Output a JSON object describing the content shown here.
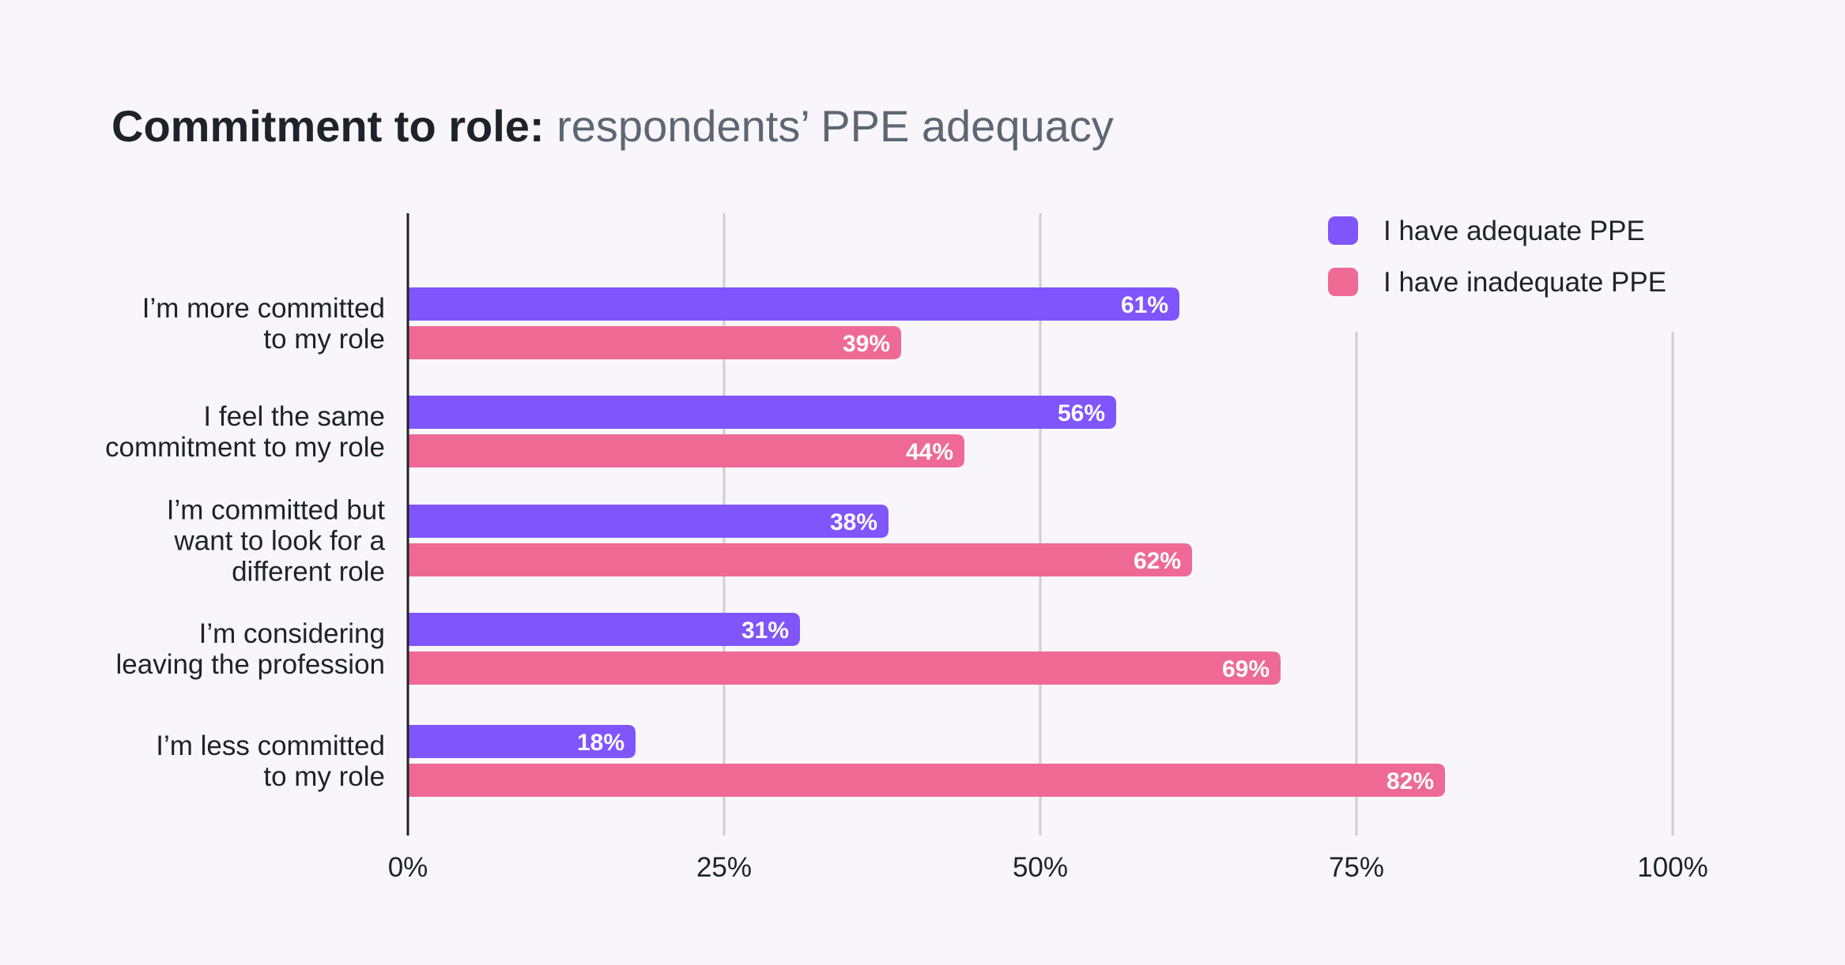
{
  "title": {
    "bold": "Commitment to role:",
    "light": "respondents’ PPE adequacy"
  },
  "colors": {
    "adequate": "#8055fb",
    "inadequate": "#ee6a94",
    "grid": "#cfcfcf",
    "axis": "#1e2229"
  },
  "chart_data": {
    "type": "bar",
    "orientation": "horizontal",
    "title": "Commitment to role: respondents’ PPE adequacy",
    "categories": [
      [
        "I’m more committed",
        "to my role"
      ],
      [
        "I feel the same",
        "commitment to my role"
      ],
      [
        "I’m committed but",
        "want to look for a",
        "different role"
      ],
      [
        "I’m considering",
        "leaving the profession"
      ],
      [
        "I’m less committed",
        "to my role"
      ]
    ],
    "series": [
      {
        "name": "I have adequate PPE",
        "values": [
          61,
          56,
          38,
          31,
          18
        ]
      },
      {
        "name": "I have inadequate PPE",
        "values": [
          39,
          44,
          62,
          69,
          82
        ]
      }
    ],
    "xlim": [
      0,
      100
    ],
    "ticks": [
      0,
      25,
      50,
      75,
      100
    ],
    "tick_suffix": "%",
    "grid": true,
    "legend_position": "top-right"
  }
}
